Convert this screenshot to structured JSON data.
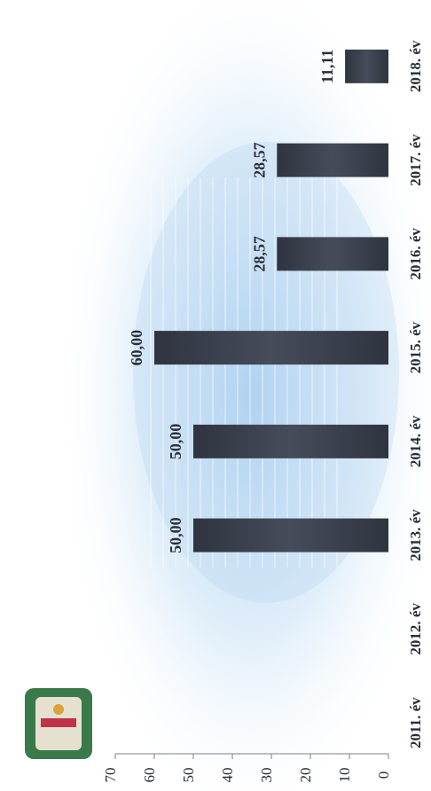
{
  "chart_data": {
    "type": "bar",
    "orientation": "rotated-90",
    "categories": [
      "2011. év",
      "2012. év",
      "2013. év",
      "2014. év",
      "2015. év",
      "2016. év",
      "2017. év",
      "2018. év"
    ],
    "values": [
      null,
      null,
      50.0,
      50.0,
      60.0,
      28.57,
      28.57,
      11.11
    ],
    "data_labels": [
      "",
      "",
      "50,00",
      "50,00",
      "60,00",
      "28,57",
      "28,57",
      "11,11"
    ],
    "yticks": [
      "0",
      "10",
      "20",
      "30",
      "40",
      "50",
      "60",
      "70"
    ],
    "ylim": [
      0,
      70
    ],
    "title": "",
    "xlabel": "",
    "ylabel": "",
    "grid": false,
    "legend": "none",
    "bar_color": "#3c4250",
    "background_tint": "#b9d7f0",
    "has_logo": true
  }
}
